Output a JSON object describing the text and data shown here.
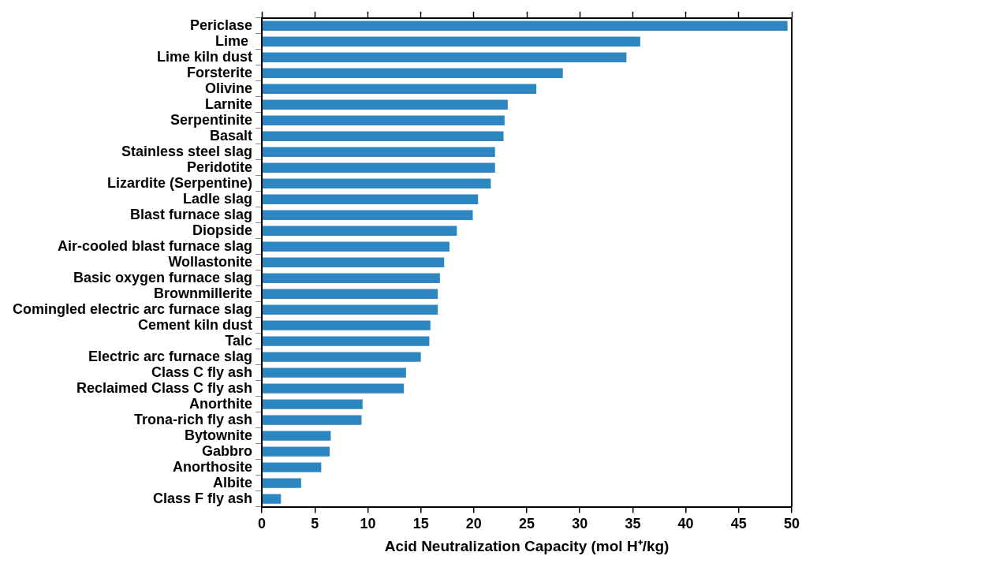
{
  "chart_data": {
    "type": "bar",
    "orientation": "horizontal",
    "xlabel": "Acid Neutralization Capacity (mol H⁺/kg)",
    "categories": [
      "Periclase",
      "Lime ",
      "Lime kiln dust",
      "Forsterite",
      "Olivine",
      "Larnite",
      "Serpentinite",
      "Basalt",
      "Stainless steel slag",
      "Peridotite",
      "Lizardite (Serpentine)",
      "Ladle slag",
      "Blast furnace slag",
      "Diopside",
      "Air-cooled blast furnace slag",
      "Wollastonite",
      "Basic oxygen furnace slag",
      "Brownmillerite",
      "Comingled electric arc furnace slag",
      "Cement kiln dust",
      "Talc",
      "Electric arc furnace slag",
      "Class C fly ash",
      "Reclaimed Class C fly ash",
      "Anorthite",
      "Trona-rich fly ash",
      "Bytownite",
      "Gabbro",
      "Anorthosite",
      "Albite",
      "Class F fly ash"
    ],
    "values": [
      49.6,
      35.7,
      34.4,
      28.4,
      25.9,
      23.2,
      22.9,
      22.8,
      22.0,
      22.0,
      21.6,
      20.4,
      19.9,
      18.4,
      17.7,
      17.2,
      16.8,
      16.6,
      16.6,
      15.9,
      15.8,
      15.0,
      13.6,
      13.4,
      9.5,
      9.4,
      6.5,
      6.4,
      5.6,
      3.7,
      1.8
    ],
    "color": "#2e86c1",
    "xlim": [
      0,
      50
    ],
    "xticks": [
      0,
      5,
      10,
      15,
      20,
      25,
      30,
      35,
      40,
      45,
      50
    ],
    "grid": false,
    "legend": false
  }
}
